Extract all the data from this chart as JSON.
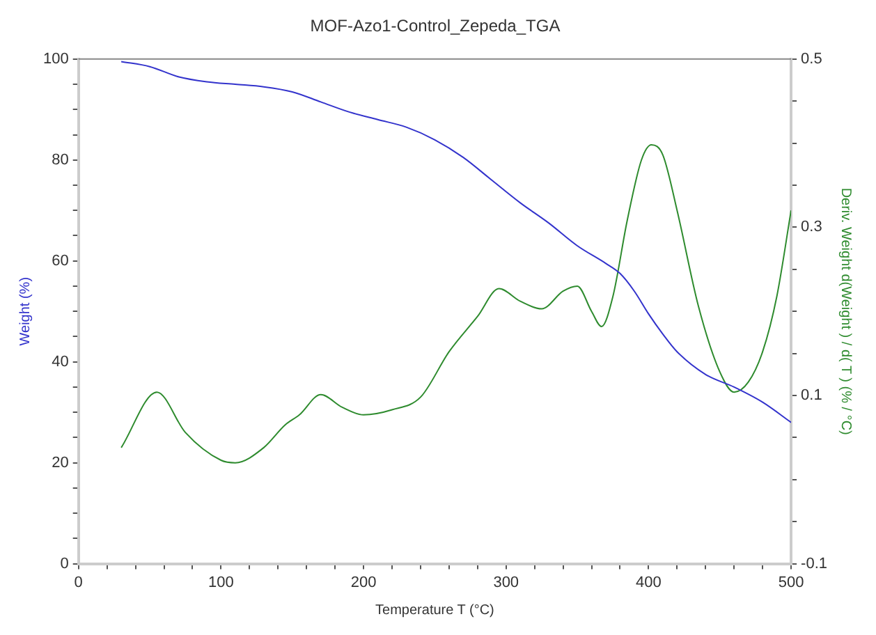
{
  "chart_data": {
    "type": "line",
    "title": "MOF-Azo1-Control_Zepeda_TGA",
    "xlabel": "Temperature T (°C)",
    "ylabel": "Weight (%)",
    "y2label": "Deriv. Weight d(Weight ) / d( T ) (% / °C)",
    "xlim": [
      0,
      500
    ],
    "xticks": [
      0,
      {
        "value": 20,
        "label": null
      },
      {
        "value": 40,
        "label": null
      },
      {
        "value": 60,
        "label": null
      },
      {
        "value": 80,
        "label": null
      },
      100,
      {
        "value": 120,
        "label": null
      },
      {
        "value": 140,
        "label": null
      },
      {
        "value": 160,
        "label": null
      },
      {
        "value": 180,
        "label": null
      },
      200,
      {
        "value": 220,
        "label": null
      },
      {
        "value": 240,
        "label": null
      },
      {
        "value": 260,
        "label": null
      },
      {
        "value": 280,
        "label": null
      },
      300,
      {
        "value": 320,
        "label": null
      },
      {
        "value": 340,
        "label": null
      },
      {
        "value": 360,
        "label": null
      },
      {
        "value": 380,
        "label": null
      },
      400,
      {
        "value": 420,
        "label": null
      },
      {
        "value": 440,
        "label": null
      },
      {
        "value": 460,
        "label": null
      },
      {
        "value": 480,
        "label": null
      },
      500
    ],
    "ylim": [
      0,
      100
    ],
    "yticks": [
      0,
      {
        "value": 5,
        "label": null
      },
      {
        "value": 10,
        "label": null
      },
      {
        "value": 15,
        "label": null
      },
      20,
      {
        "value": 25,
        "label": null
      },
      {
        "value": 30,
        "label": null
      },
      {
        "value": 35,
        "label": null
      },
      40,
      {
        "value": 45,
        "label": null
      },
      {
        "value": 50,
        "label": null
      },
      {
        "value": 55,
        "label": null
      },
      60,
      {
        "value": 65,
        "label": null
      },
      {
        "value": 70,
        "label": null
      },
      {
        "value": 75,
        "label": null
      },
      80,
      {
        "value": 85,
        "label": null
      },
      {
        "value": 90,
        "label": null
      },
      {
        "value": 95,
        "label": null
      },
      100
    ],
    "y2lim": [
      -0.1,
      0.5
    ],
    "y2ticks": [
      -0.1,
      {
        "value": -0.05,
        "label": null
      },
      {
        "value": 0,
        "label": null
      },
      {
        "value": 0.05,
        "label": null
      },
      0.1,
      {
        "value": 0.15,
        "label": null
      },
      {
        "value": 0.2,
        "label": null
      },
      {
        "value": 0.25,
        "label": null
      },
      0.3,
      {
        "value": 0.35,
        "label": null
      },
      {
        "value": 0.4,
        "label": null
      },
      {
        "value": 0.45,
        "label": null
      },
      0.5
    ],
    "grid": false,
    "legend": false,
    "marker": "none",
    "line_style": "solid",
    "series": [
      {
        "color": "#3333cc",
        "x": [
          30,
          50,
          70,
          90,
          110,
          130,
          150,
          170,
          190,
          210,
          230,
          250,
          270,
          290,
          310,
          330,
          350,
          370,
          380,
          390,
          400,
          410,
          420,
          440,
          460,
          480,
          500
        ],
        "values": [
          99.5,
          98.5,
          96.5,
          95.5,
          95,
          94.5,
          93.5,
          91.5,
          89.5,
          88,
          86.5,
          84,
          80.5,
          76,
          71.5,
          67.5,
          63,
          59.5,
          57.5,
          54,
          49.5,
          45.5,
          42,
          37.5,
          35,
          32,
          28
        ]
      },
      {
        "color": "#2e8b2e",
        "axis": "y2",
        "x": [
          30,
          55,
          75,
          100,
          110,
          130,
          145,
          155,
          170,
          185,
          200,
          220,
          240,
          260,
          280,
          295,
          310,
          325,
          340,
          350,
          360,
          367,
          375,
          385,
          395,
          402,
          410,
          420,
          435,
          450,
          460,
          470,
          480,
          490,
          500
        ],
        "values": [
          0.038,
          0.104,
          0.056,
          0.023,
          0.02,
          0.038,
          0.065,
          0.077,
          0.101,
          0.086,
          0.077,
          0.083,
          0.098,
          0.152,
          0.194,
          0.227,
          0.212,
          0.203,
          0.224,
          0.23,
          0.2,
          0.182,
          0.218,
          0.308,
          0.38,
          0.398,
          0.386,
          0.32,
          0.206,
          0.128,
          0.104,
          0.116,
          0.152,
          0.218,
          0.32
        ]
      }
    ]
  }
}
